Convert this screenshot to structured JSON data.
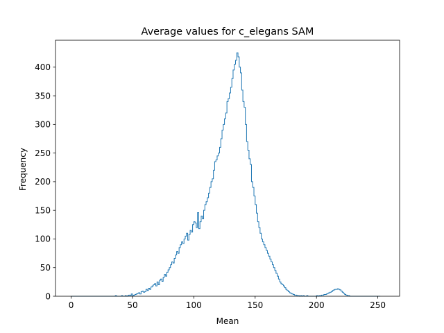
{
  "chart_data": {
    "type": "histogram",
    "title": "Average values for c_elegans SAM",
    "xlabel": "Mean",
    "ylabel": "Frequency",
    "xlim": [
      -12.75,
      267.75
    ],
    "ylim": [
      0,
      447
    ],
    "xticks": [
      0,
      50,
      100,
      150,
      200,
      250
    ],
    "yticks": [
      0,
      50,
      100,
      150,
      200,
      250,
      300,
      350,
      400
    ],
    "bin_start": 0,
    "bin_width": 1,
    "line_color": "#1f77b4",
    "grid": false,
    "values": [
      0,
      0,
      0,
      0,
      0,
      0,
      0,
      0,
      0,
      0,
      0,
      0,
      0,
      0,
      0,
      0,
      0,
      0,
      0,
      0,
      0,
      0,
      0,
      0,
      0,
      0,
      0,
      0,
      0,
      0,
      0,
      0,
      0,
      0,
      0,
      0,
      1,
      0,
      0,
      0,
      0,
      1,
      0,
      0,
      1,
      0,
      1,
      2,
      1,
      4,
      1,
      2,
      3,
      4,
      5,
      6,
      4,
      8,
      9,
      7,
      8,
      12,
      10,
      14,
      12,
      16,
      18,
      20,
      22,
      18,
      25,
      20,
      28,
      30,
      26,
      33,
      38,
      35,
      42,
      46,
      50,
      55,
      60,
      58,
      66,
      72,
      78,
      75,
      85,
      90,
      95,
      92,
      100,
      105,
      110,
      98,
      108,
      115,
      112,
      125,
      130,
      128,
      120,
      146,
      118,
      130,
      140,
      135,
      150,
      160,
      165,
      172,
      180,
      190,
      200,
      205,
      220,
      235,
      238,
      245,
      250,
      260,
      275,
      290,
      300,
      310,
      320,
      340,
      345,
      355,
      365,
      380,
      395,
      405,
      412,
      425,
      418,
      400,
      390,
      360,
      340,
      330,
      300,
      270,
      255,
      240,
      230,
      200,
      190,
      175,
      160,
      145,
      130,
      120,
      110,
      100,
      95,
      90,
      85,
      80,
      75,
      70,
      65,
      60,
      55,
      50,
      45,
      40,
      35,
      30,
      25,
      22,
      20,
      18,
      15,
      12,
      10,
      8,
      6,
      5,
      4,
      3,
      2,
      2,
      1,
      1,
      0,
      1,
      0,
      1,
      0,
      0,
      1,
      0,
      0,
      0,
      0,
      0,
      0,
      0,
      1,
      0,
      1,
      1,
      2,
      2,
      3,
      3,
      4,
      5,
      6,
      7,
      8,
      10,
      11,
      12,
      12,
      13,
      12,
      11,
      9,
      7,
      5,
      3,
      2,
      1,
      1,
      0,
      0,
      0,
      0,
      0,
      0,
      0,
      0,
      0,
      0,
      0,
      0,
      0,
      0,
      0,
      0,
      0,
      0,
      0,
      0,
      0,
      0,
      0,
      0,
      0
    ]
  }
}
